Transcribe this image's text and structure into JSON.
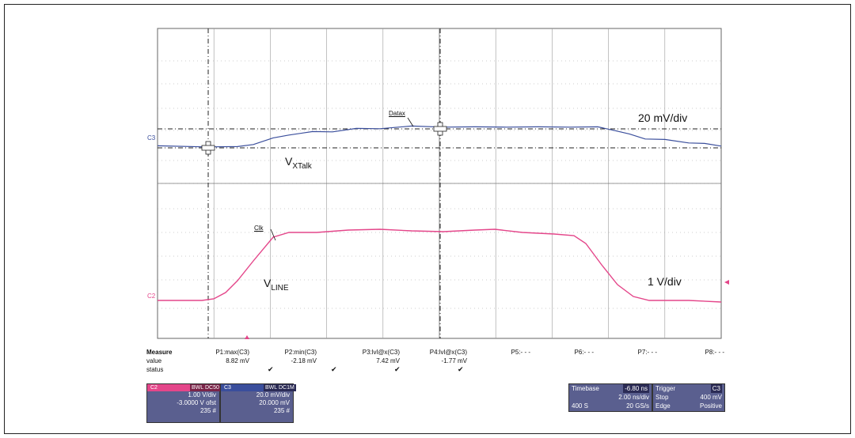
{
  "colors": {
    "clk": "#e4468a",
    "datax": "#3a4e9c",
    "panel": "#5a5f8f",
    "grid": "#9a9a9a"
  },
  "annotations": {
    "datax_label": "Datax",
    "clk_label": "Clk",
    "vxtalk_main": "V",
    "vxtalk_sub": "XTalk",
    "vline_main": "V",
    "vline_sub": "LINE",
    "scale_c3": "20 mV/div",
    "scale_c2": "1 V/div",
    "trace_c3": "C3",
    "trace_c2": "C2"
  },
  "measure": {
    "title": "Measure",
    "row_value": "value",
    "row_status": "status",
    "params": [
      {
        "name": "P1:max(C3)",
        "value": "8.82 mV",
        "check": "✔"
      },
      {
        "name": "P2:min(C3)",
        "value": "-2.18 mV",
        "check": "✔"
      },
      {
        "name": "P3:lvl@x(C3)",
        "value": "7.42 mV",
        "check": "✔"
      },
      {
        "name": "P4:lvl@x(C3)",
        "value": "-1.77 mV",
        "check": "✔"
      },
      {
        "name": "P5:- - -",
        "value": "",
        "check": ""
      },
      {
        "name": "P6:- - -",
        "value": "",
        "check": ""
      },
      {
        "name": "P7:- - -",
        "value": "",
        "check": ""
      },
      {
        "name": "P8:- - -",
        "value": "",
        "check": ""
      }
    ]
  },
  "channels": {
    "c2": {
      "id": "C2",
      "tag1": "BWL",
      "tag2": "DC50",
      "scale": "1.00 V/div",
      "offset": "-3.0000 V ofst",
      "count": "235 #"
    },
    "c3": {
      "id": "C3",
      "tag1": "BWL",
      "tag2": "DC1M",
      "scale": "20.0 mV/div",
      "offset": "20.000 mV",
      "count": "235 #"
    }
  },
  "timebase": {
    "label": "Timebase",
    "delay": "-6.80 ns",
    "per_div": "2.00 ns/div",
    "samples": "400 S",
    "rate": "20 GS/s"
  },
  "trigger": {
    "label": "Trigger",
    "channel": "C3",
    "mode": "Stop",
    "level": "400 mV",
    "type": "Edge",
    "slope": "Positive"
  }
}
